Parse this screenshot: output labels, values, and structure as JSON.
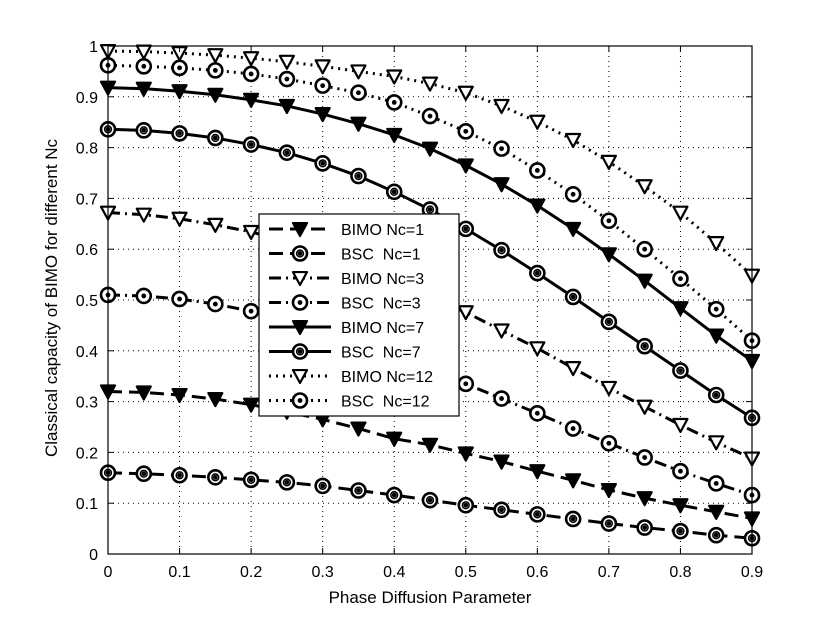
{
  "chart_data": {
    "type": "line",
    "title": "",
    "xlabel": "Phase Diffusion Parameter",
    "ylabel": "Classical capacity of BIMO for different Nc",
    "xlim": [
      0,
      0.9
    ],
    "ylim": [
      0,
      1
    ],
    "xticks": [
      0,
      0.1,
      0.2,
      0.3,
      0.4,
      0.5,
      0.6,
      0.7,
      0.8,
      0.9
    ],
    "yticks": [
      0,
      0.1,
      0.2,
      0.3,
      0.4,
      0.5,
      0.6,
      0.7,
      0.8,
      0.9,
      1
    ],
    "grid": true,
    "legend_position": "center",
    "x": [
      0,
      0.05,
      0.1,
      0.15,
      0.2,
      0.25,
      0.3,
      0.35,
      0.4,
      0.45,
      0.5,
      0.55,
      0.6,
      0.65,
      0.7,
      0.75,
      0.8,
      0.85,
      0.9
    ],
    "series": [
      {
        "name": "BIMO Nc=1",
        "line": "dashed",
        "marker": "filled-triangle",
        "values": [
          0.32,
          0.318,
          0.313,
          0.305,
          0.294,
          0.28,
          0.265,
          0.247,
          0.227,
          0.215,
          0.198,
          0.182,
          0.163,
          0.145,
          0.126,
          0.11,
          0.096,
          0.083,
          0.07
        ]
      },
      {
        "name": "BSC  Nc=1",
        "line": "dashed",
        "marker": "filled-circle",
        "values": [
          0.16,
          0.158,
          0.155,
          0.151,
          0.146,
          0.141,
          0.134,
          0.125,
          0.116,
          0.106,
          0.096,
          0.087,
          0.078,
          0.069,
          0.06,
          0.052,
          0.045,
          0.037,
          0.031
        ]
      },
      {
        "name": "BIMO Nc=3",
        "line": "dashdot",
        "marker": "open-triangle",
        "values": [
          0.672,
          0.668,
          0.66,
          0.648,
          0.634,
          0.615,
          0.592,
          0.566,
          0.537,
          0.505,
          0.476,
          0.44,
          0.405,
          0.366,
          0.327,
          0.29,
          0.254,
          0.22,
          0.188
        ]
      },
      {
        "name": "BSC  Nc=3",
        "line": "dashdot",
        "marker": "open-circle",
        "values": [
          0.51,
          0.508,
          0.502,
          0.492,
          0.478,
          0.461,
          0.441,
          0.42,
          0.396,
          0.37,
          0.335,
          0.306,
          0.277,
          0.247,
          0.218,
          0.19,
          0.163,
          0.139,
          0.116
        ]
      },
      {
        "name": "BIMO Nc=7",
        "line": "solid",
        "marker": "filled-triangle",
        "values": [
          0.918,
          0.916,
          0.911,
          0.904,
          0.894,
          0.882,
          0.866,
          0.847,
          0.825,
          0.798,
          0.765,
          0.728,
          0.686,
          0.64,
          0.59,
          0.538,
          0.484,
          0.43,
          0.38
        ]
      },
      {
        "name": "BSC  Nc=7",
        "line": "solid",
        "marker": "filled-circle",
        "values": [
          0.836,
          0.834,
          0.828,
          0.819,
          0.806,
          0.79,
          0.769,
          0.744,
          0.713,
          0.678,
          0.64,
          0.598,
          0.553,
          0.506,
          0.457,
          0.409,
          0.361,
          0.313,
          0.268
        ]
      },
      {
        "name": "BIMO Nc=12",
        "line": "dotted",
        "marker": "open-triangle",
        "values": [
          0.99,
          0.989,
          0.986,
          0.982,
          0.976,
          0.969,
          0.96,
          0.95,
          0.94,
          0.926,
          0.908,
          0.882,
          0.851,
          0.815,
          0.772,
          0.724,
          0.672,
          0.612,
          0.548
        ]
      },
      {
        "name": "BSC  Nc=12",
        "line": "dotted",
        "marker": "open-circle",
        "values": [
          0.962,
          0.96,
          0.957,
          0.952,
          0.945,
          0.935,
          0.922,
          0.908,
          0.889,
          0.862,
          0.832,
          0.798,
          0.755,
          0.708,
          0.656,
          0.6,
          0.542,
          0.482,
          0.42
        ]
      }
    ]
  }
}
